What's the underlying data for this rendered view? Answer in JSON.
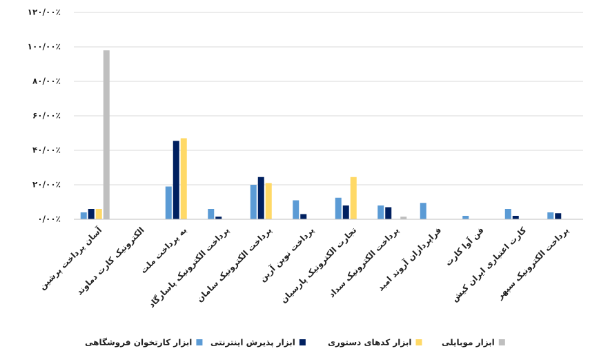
{
  "chart_data": {
    "type": "bar",
    "categories": [
      "آسان پرداخت پرشین",
      "الکترونیک کارت دماوند",
      "به پرداخت ملت",
      "پرداخت الکترونیک پاسارگاد",
      "پرداخت الکترونیک سامان",
      "پرداخت نوین آرین",
      "تجارت الکترونیک پارسیان",
      "پرداخت الکترونیک سداد",
      "فراپردازان آروند امید",
      "فن آوا کارت",
      "کارت اعتباری ایران کیش",
      "پرداخت الکترونیک سپهر"
    ],
    "series": [
      {
        "name": "ابزار کارتخوان فروشگاهی",
        "color": "#5b9bd5",
        "values": [
          4,
          0,
          19,
          6,
          20,
          11,
          12.5,
          8,
          9.5,
          2,
          6,
          4
        ]
      },
      {
        "name": "ابزار پذیرش اینترنتی",
        "color": "#002060",
        "values": [
          6,
          0,
          45.5,
          1.5,
          24.5,
          3,
          8,
          7,
          0,
          0,
          2,
          3.5
        ]
      },
      {
        "name": "ابزار کدهای دستوری",
        "color": "#ffd966",
        "values": [
          6,
          0,
          47,
          0,
          21,
          0,
          24.5,
          0,
          0,
          0,
          0,
          0
        ]
      },
      {
        "name": "ابزار موبایلی",
        "color": "#bfbfbf",
        "values": [
          98,
          0,
          0,
          0,
          0,
          0,
          0,
          1.5,
          0,
          0,
          0,
          0
        ]
      }
    ],
    "ylim": [
      0,
      120
    ],
    "yticks": [
      {
        "value": 0,
        "label": "۰/۰۰٪"
      },
      {
        "value": 20,
        "label": "۲۰/۰۰٪"
      },
      {
        "value": 40,
        "label": "۴۰/۰۰٪"
      },
      {
        "value": 60,
        "label": "۶۰/۰۰٪"
      },
      {
        "value": 80,
        "label": "۸۰/۰۰٪"
      },
      {
        "value": 100,
        "label": "۱۰۰/۰۰٪"
      },
      {
        "value": 120,
        "label": "۱۲۰/۰۰٪"
      }
    ],
    "grid": true
  }
}
